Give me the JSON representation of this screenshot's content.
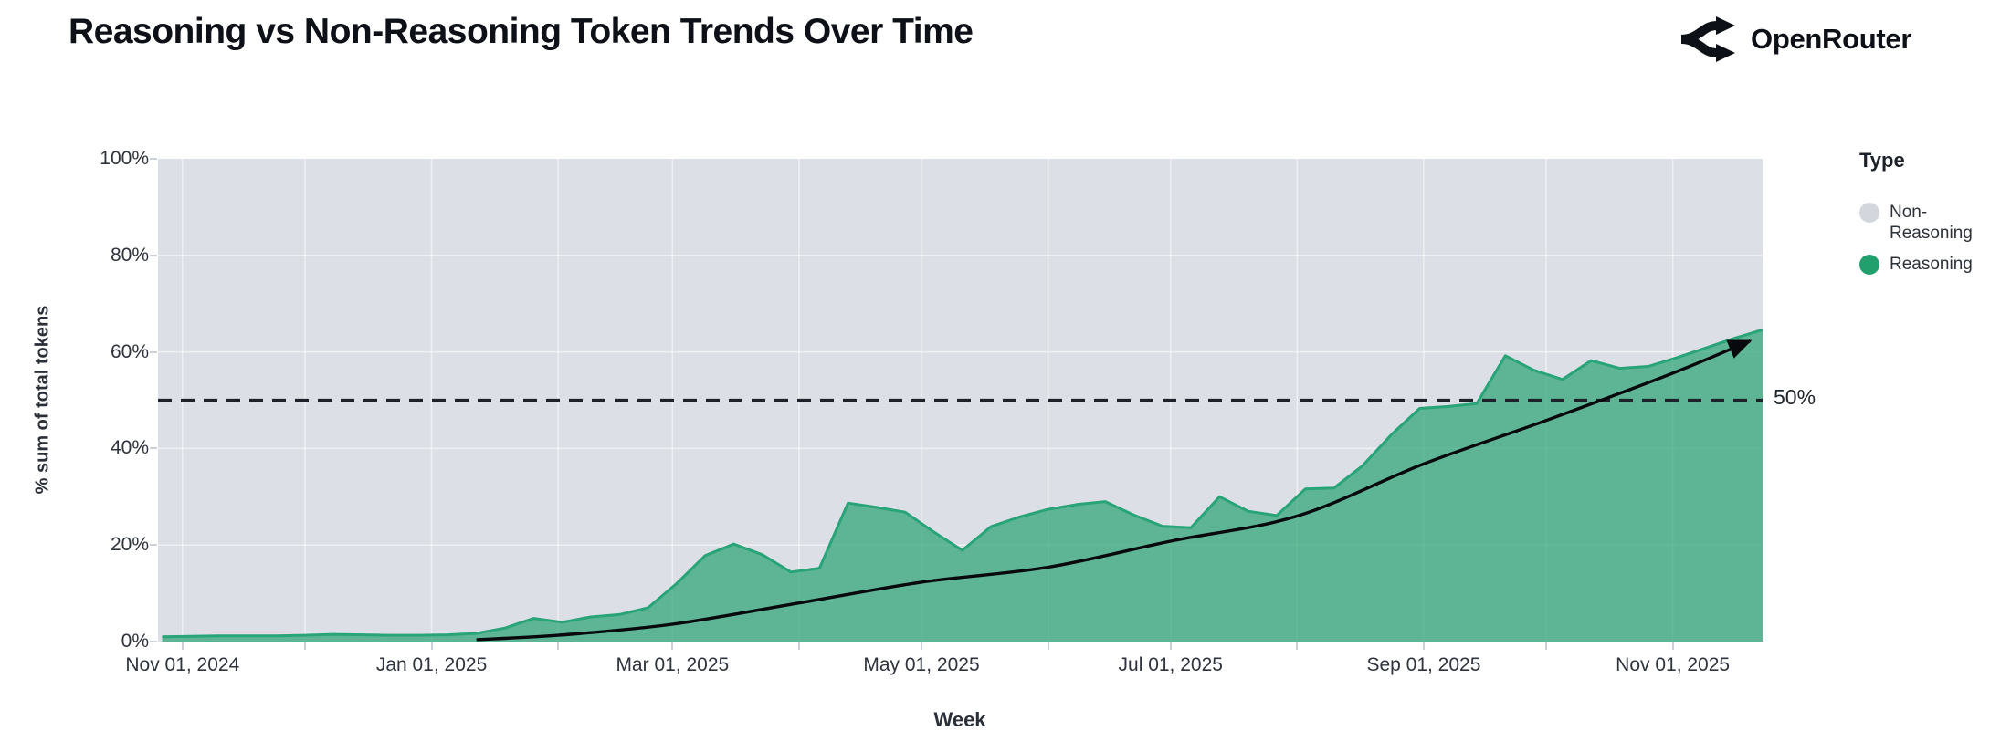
{
  "header": {
    "title": "Reasoning vs Non-Reasoning Token Trends Over Time",
    "brand": "OpenRouter"
  },
  "chart_data": {
    "type": "area",
    "stacking": "percent_share",
    "title": "Reasoning vs Non-Reasoning Token Trends Over Time",
    "xlabel": "Week",
    "ylabel": "% sum of total tokens",
    "ylim": [
      0,
      100
    ],
    "x_domain": [
      "2024-10-26",
      "2025-11-23"
    ],
    "grid": "on",
    "y_ticks": [
      {
        "value": 0,
        "label": "0%"
      },
      {
        "value": 20,
        "label": "20%"
      },
      {
        "value": 40,
        "label": "40%"
      },
      {
        "value": 60,
        "label": "60%"
      },
      {
        "value": 80,
        "label": "80%"
      },
      {
        "value": 100,
        "label": "100%"
      }
    ],
    "month_ticks": [
      "2024-11-01",
      "2024-12-01",
      "2025-01-01",
      "2025-02-01",
      "2025-03-01",
      "2025-04-01",
      "2025-05-01",
      "2025-06-01",
      "2025-07-01",
      "2025-08-01",
      "2025-09-01",
      "2025-10-01",
      "2025-11-01"
    ],
    "x_ticks": [
      {
        "date": "2024-11-01",
        "label": "Nov 01, 2024"
      },
      {
        "date": "2025-01-01",
        "label": "Jan 01, 2025"
      },
      {
        "date": "2025-03-01",
        "label": "Mar 01, 2025"
      },
      {
        "date": "2025-05-01",
        "label": "May 01, 2025"
      },
      {
        "date": "2025-07-01",
        "label": "Jul 01, 2025"
      },
      {
        "date": "2025-09-01",
        "label": "Sep 01, 2025"
      },
      {
        "date": "2025-11-01",
        "label": "Nov 01, 2025"
      }
    ],
    "legend": {
      "title": "Type",
      "items": [
        {
          "label": "Non-Reasoning",
          "color": "#d3d6dd"
        },
        {
          "label": "Reasoning",
          "color": "#21a06e"
        }
      ]
    },
    "annotation": {
      "label": "50%",
      "value": 50,
      "line_style": "dashed",
      "line_color": "#1d2129"
    },
    "series": [
      {
        "name": "Non-Reasoning",
        "role": "background_to_100_percent",
        "color": "#dcdfe5"
      },
      {
        "name": "Reasoning",
        "color": "#21a06e",
        "fill_opacity": 0.68,
        "edge_color": "#28a478",
        "x": [
          "2024-10-27",
          "2024-11-03",
          "2024-11-10",
          "2024-11-17",
          "2024-11-24",
          "2024-12-01",
          "2024-12-08",
          "2024-12-15",
          "2024-12-22",
          "2024-12-29",
          "2025-01-05",
          "2025-01-12",
          "2025-01-19",
          "2025-01-26",
          "2025-02-02",
          "2025-02-09",
          "2025-02-16",
          "2025-02-23",
          "2025-03-02",
          "2025-03-09",
          "2025-03-16",
          "2025-03-23",
          "2025-03-30",
          "2025-04-06",
          "2025-04-13",
          "2025-04-20",
          "2025-04-27",
          "2025-05-04",
          "2025-05-11",
          "2025-05-18",
          "2025-05-25",
          "2025-06-01",
          "2025-06-08",
          "2025-06-15",
          "2025-06-22",
          "2025-06-29",
          "2025-07-06",
          "2025-07-13",
          "2025-07-20",
          "2025-07-27",
          "2025-08-03",
          "2025-08-10",
          "2025-08-17",
          "2025-08-24",
          "2025-08-31",
          "2025-09-07",
          "2025-09-14",
          "2025-09-21",
          "2025-09-28",
          "2025-10-05",
          "2025-10-12",
          "2025-10-19",
          "2025-10-26",
          "2025-11-02",
          "2025-11-09",
          "2025-11-16",
          "2025-11-23"
        ],
        "values": [
          1.0,
          1.1,
          1.2,
          1.2,
          1.2,
          1.3,
          1.5,
          1.4,
          1.3,
          1.3,
          1.4,
          1.7,
          2.8,
          4.8,
          4.0,
          5.1,
          5.6,
          7.0,
          12.0,
          17.8,
          20.2,
          18.0,
          14.4,
          15.2,
          28.7,
          27.8,
          26.8,
          22.7,
          18.9,
          23.8,
          25.8,
          27.4,
          28.4,
          29.0,
          26.2,
          23.9,
          23.6,
          30.0,
          27.0,
          26.1,
          31.6,
          31.8,
          36.4,
          42.8,
          48.3,
          48.7,
          49.3,
          59.2,
          56.2,
          54.3,
          58.2,
          56.6,
          57.0,
          58.8,
          60.8,
          62.8,
          64.6
        ]
      }
    ],
    "trend_line": {
      "name": "trend-arrow",
      "color": "#07090c",
      "arrow": true,
      "x": [
        "2025-01-12",
        "2025-02-01",
        "2025-03-01",
        "2025-04-01",
        "2025-05-01",
        "2025-06-01",
        "2025-07-01",
        "2025-08-01",
        "2025-09-01",
        "2025-10-01",
        "2025-11-01",
        "2025-11-20"
      ],
      "values": [
        0.4,
        1.3,
        3.6,
        8.0,
        12.3,
        15.4,
        20.8,
        26.0,
        36.8,
        45.8,
        55.6,
        62.3
      ]
    },
    "plot_background": "#dcdfe5",
    "gridline_color": "#ffffff"
  }
}
